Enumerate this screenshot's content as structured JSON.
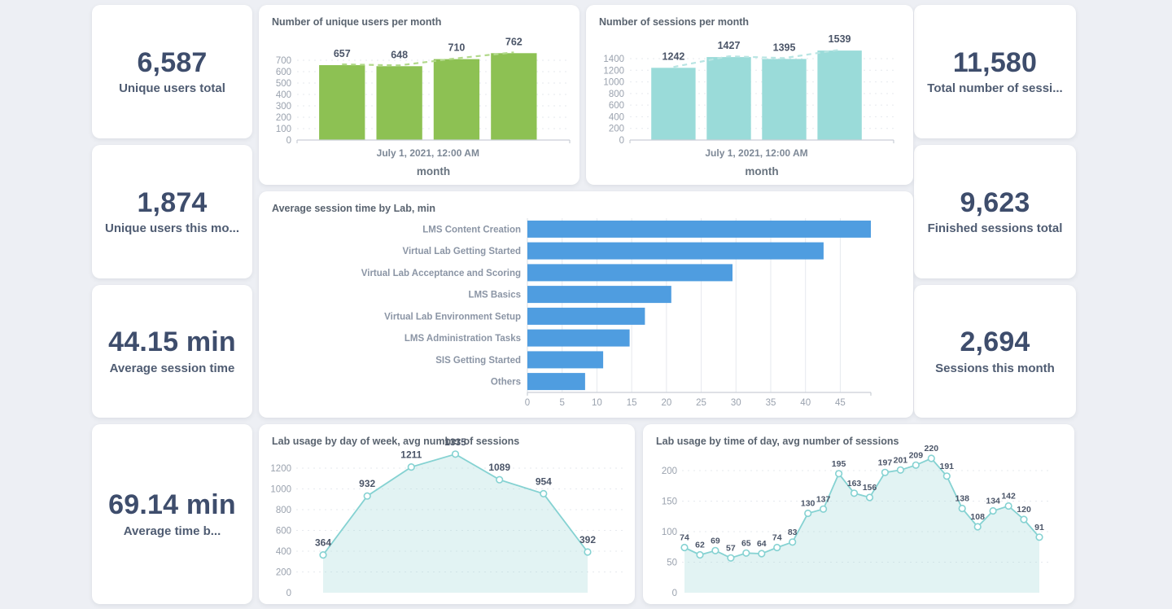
{
  "theme": {
    "background": "#edeff4",
    "card_bg": "#ffffff",
    "kpi_number_color": "#3e4d6c",
    "kpi_label_color": "#4f5c72",
    "chart_title_color": "#59636f",
    "axis_text_color": "#9aa2ae",
    "value_label_color": "#4b5568",
    "green_bar": "#8dc153",
    "teal_bar": "#9adbd9",
    "blue_bar": "#4f9de0",
    "teal_line": "#85d2d2"
  },
  "kpi_cards": [
    {
      "id": "unique-users-total",
      "value": "6,587",
      "label": "Unique users total"
    },
    {
      "id": "unique-users-this-month",
      "value": "1,874",
      "label": "Unique users this mo..."
    },
    {
      "id": "average-session-time",
      "value": "44.15 min",
      "label": "Average session time"
    },
    {
      "id": "average-time-between",
      "value": "69.14 min",
      "label": "Average time b..."
    },
    {
      "id": "total-number-of-sessions",
      "value": "11,580",
      "label": "Total number of sessi..."
    },
    {
      "id": "finished-sessions-total",
      "value": "9,623",
      "label": "Finished sessions total"
    },
    {
      "id": "sessions-this-month",
      "value": "2,694",
      "label": "Sessions this month"
    }
  ],
  "chart_data": [
    {
      "id": "users_per_month",
      "type": "bar",
      "title": "Number of unique users per month",
      "values": [
        657,
        648,
        710,
        762
      ],
      "yticks": [
        0,
        100,
        200,
        300,
        400,
        500,
        600,
        700
      ],
      "ylim": [
        0,
        900
      ],
      "x_tick_label": "July 1, 2021, 12:00 AM",
      "xlabel": "month",
      "grid": "dashed-horizontal",
      "trendline": true,
      "color": "#8dc153",
      "trend_color": "#b2d98b"
    },
    {
      "id": "sessions_per_month",
      "type": "bar",
      "title": "Number of sessions per month",
      "values": [
        1242,
        1427,
        1395,
        1539
      ],
      "yticks": [
        0,
        200,
        400,
        600,
        800,
        1000,
        1200,
        1400
      ],
      "ylim": [
        0,
        1760
      ],
      "x_tick_label": "July 1, 2021, 12:00 AM",
      "xlabel": "month",
      "grid": "dashed-horizontal",
      "trendline": true,
      "color": "#9adbd9",
      "trend_color": "#b9e5e3"
    },
    {
      "id": "avg_session_time_by_lab",
      "type": "bar",
      "orientation": "horizontal",
      "title": "Average session time by Lab, min",
      "categories": [
        "LMS Content Creation",
        "Virtual Lab Getting Started",
        "Virtual Lab Acceptance and Scoring",
        "LMS Basics",
        "Virtual Lab Environment Setup",
        "LMS Administration Tasks",
        "SIS Getting Started",
        "Others"
      ],
      "values": [
        49.4,
        42.6,
        29.5,
        20.7,
        16.9,
        14.7,
        10.9,
        8.3
      ],
      "xticks": [
        0,
        5,
        10,
        15,
        20,
        25,
        30,
        35,
        40,
        45
      ],
      "xlim": [
        0,
        49.4
      ],
      "grid": "solid-vertical",
      "color": "#4f9de0"
    },
    {
      "id": "lab_usage_by_day_of_week",
      "type": "area",
      "title": "Lab usage by day of week, avg number of sessions",
      "values": [
        364,
        932,
        1211,
        1335,
        1089,
        954,
        392
      ],
      "yticks": [
        0,
        200,
        400,
        600,
        800,
        1000,
        1200
      ],
      "ylim": [
        0,
        1400
      ],
      "grid": "dashed-horizontal",
      "line_color": "#85d2d2",
      "fill_color": "rgba(166,219,220,0.33)"
    },
    {
      "id": "lab_usage_by_time_of_day",
      "type": "area",
      "title": "Lab usage by time of day, avg number of sessions",
      "values": [
        74,
        62,
        69,
        57,
        65,
        64,
        74,
        83,
        130,
        137,
        195,
        163,
        156,
        197,
        201,
        209,
        220,
        191,
        138,
        108,
        134,
        142,
        120,
        91
      ],
      "yticks": [
        0,
        50,
        100,
        150,
        200
      ],
      "ylim": [
        0,
        230
      ],
      "grid": "dashed-horizontal",
      "line_color": "#85d2d2",
      "fill_color": "rgba(166,219,220,0.33)"
    }
  ]
}
